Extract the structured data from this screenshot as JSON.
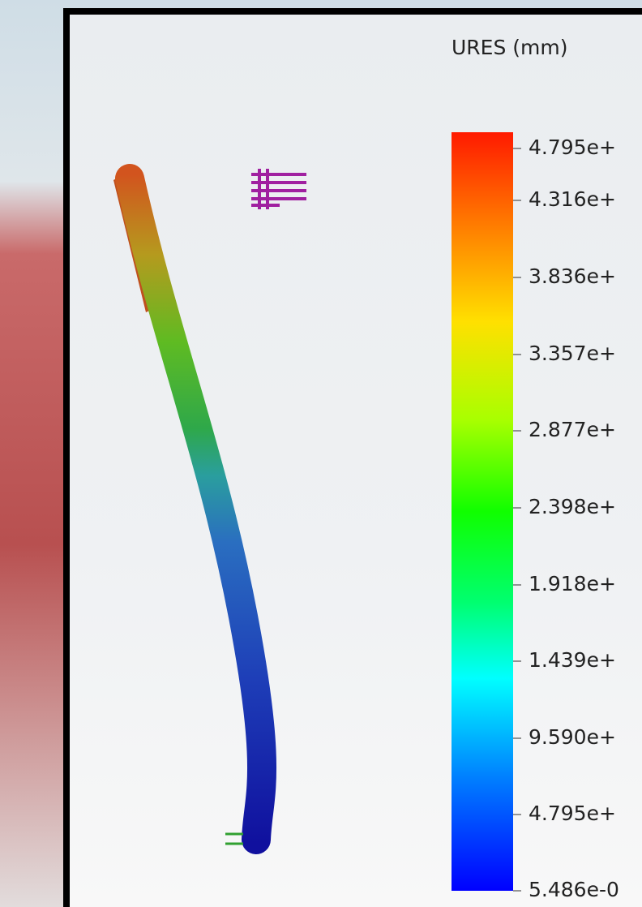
{
  "legend": {
    "title": "URES (mm)",
    "labels": [
      "4.795e+",
      "4.316e+",
      "3.836e+",
      "3.357e+",
      "2.877e+",
      "2.398e+",
      "1.918e+",
      "1.439e+",
      "9.590e+",
      "4.795e+",
      "5.486e-0"
    ]
  }
}
